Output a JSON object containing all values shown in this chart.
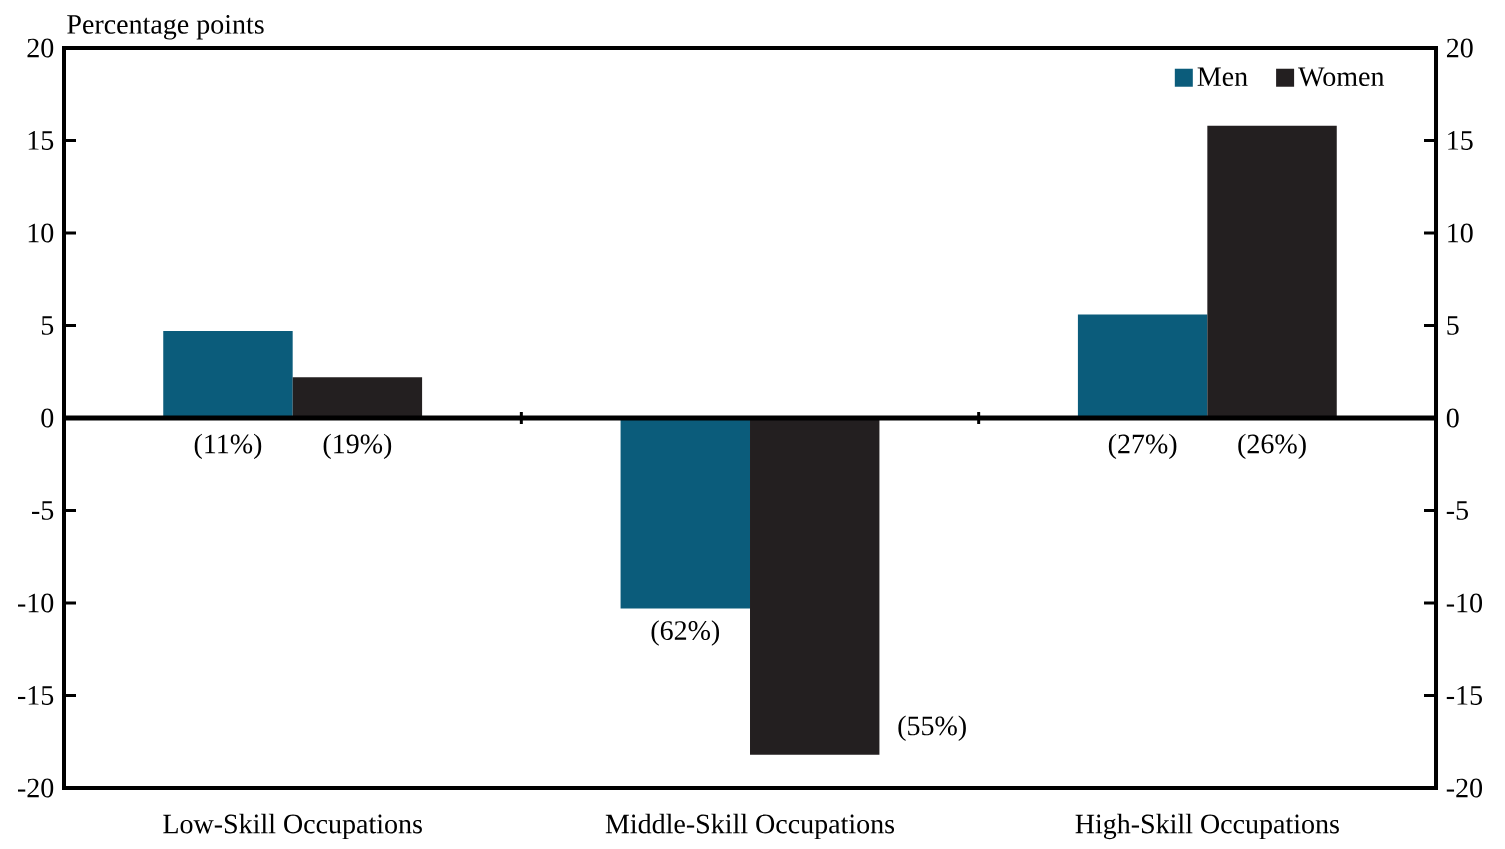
{
  "chart_data": {
    "type": "bar",
    "ylabel": "Percentage points",
    "categories": [
      "Low-Skill Occupations",
      "Middle-Skill Occupations",
      "High-Skill Occupations"
    ],
    "series": [
      {
        "name": "Men",
        "color": "#0b5c7b",
        "values": [
          4.7,
          -10.3,
          5.6
        ]
      },
      {
        "name": "Women",
        "color": "#231f20",
        "values": [
          2.2,
          -18.2,
          15.8
        ]
      }
    ],
    "annotations": [
      "(11%)",
      "(19%)",
      "(62%)",
      "(55%)",
      "(27%)",
      "(26%)"
    ],
    "grid": false,
    "ref_lines": [
      {
        "axis": "y",
        "value": 0
      }
    ],
    "ylim": [
      -20,
      20
    ],
    "yticks": [
      -20,
      -15,
      -10,
      -5,
      0,
      5,
      10,
      15,
      20
    ],
    "y2lim": [
      -20,
      20
    ],
    "y2ticks": [
      -20,
      -15,
      -10,
      -5,
      0,
      5,
      10,
      15,
      20
    ],
    "legend": "top right"
  }
}
